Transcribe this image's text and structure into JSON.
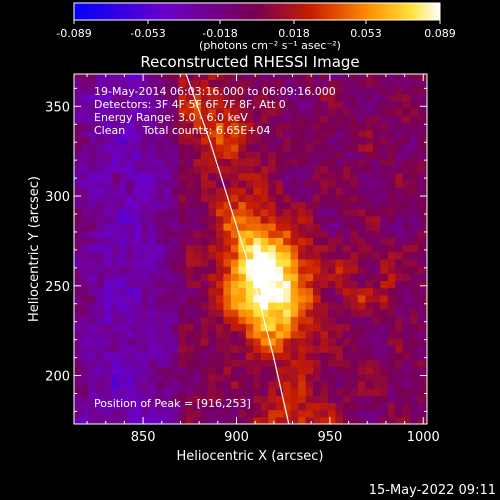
{
  "colorbar": {
    "tick_labels": [
      "-0.089",
      "-0.053",
      "-0.018",
      "0.018",
      "0.053",
      "0.089"
    ],
    "range": [
      -0.089,
      0.089
    ],
    "units_label": "(photons cm⁻² s⁻¹ asec⁻²)"
  },
  "chart_data": {
    "type": "heatmap",
    "title": "Reconstructed RHESSI Image",
    "xlabel": "Heliocentric X (arcsec)",
    "ylabel": "Heliocentric Y (arcsec)",
    "xlim": [
      813,
      1002
    ],
    "ylim": [
      173,
      368
    ],
    "x_ticks": [
      850,
      900,
      950,
      1000
    ],
    "y_ticks": [
      200,
      250,
      300,
      350
    ],
    "annotations": [
      "19-May-2014 06:03:16.000 to 06:09:16.000",
      "Detectors: 3F 4F 5F 6F 7F 8F, Att 0",
      "Energy Range: 3.0 - 6.0 keV",
      "Clean     Total counts: 6.65E+04"
    ],
    "peak_label": "Position of Peak = [916,253]",
    "peak": [
      916,
      253
    ],
    "limb_curve": {
      "x": [
        873,
        886,
        898,
        910,
        920,
        928
      ],
      "y": [
        368,
        330,
        290,
        250,
        210,
        173
      ]
    }
  },
  "footer": {
    "timestamp": "15-May-2022 09:11"
  }
}
